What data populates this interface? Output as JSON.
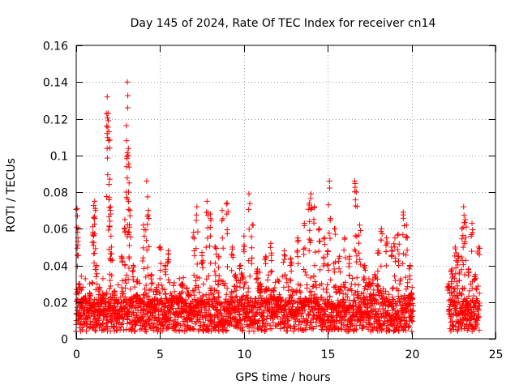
{
  "chart_data": {
    "type": "scatter",
    "title": "Day 145 of 2024, Rate Of TEC Index for receiver cn14",
    "xlabel": "GPS time / hours",
    "ylabel": "ROTI / TECUs",
    "xlim": [
      0,
      25
    ],
    "ylim": [
      0,
      0.16
    ],
    "x_ticks": [
      0,
      5,
      10,
      15,
      20,
      25
    ],
    "x_tick_labels": [
      "0",
      "5",
      "10",
      "15",
      "20",
      "25"
    ],
    "y_ticks": [
      0,
      0.02,
      0.04,
      0.06,
      0.08,
      0.1,
      0.12,
      0.14,
      0.16
    ],
    "y_tick_labels": [
      "0",
      "0.02",
      "0.04",
      "0.06",
      "0.08",
      "0.1",
      "0.12",
      "0.14",
      "0.16"
    ],
    "grid": true,
    "marker": "+",
    "colors": {
      "points": "#ff0000",
      "grid": "#a0a0a0",
      "axes": "#000000"
    },
    "series": [
      {
        "name": "cn14",
        "data_gaps_hours": [
          [
            20.1,
            22.2
          ]
        ],
        "x": [
          0.05,
          0.1,
          0.2,
          0.3,
          0.45,
          0.6,
          0.8,
          1.0,
          1.05,
          1.1,
          1.2,
          1.4,
          1.6,
          1.85,
          1.9,
          1.95,
          2.0,
          2.05,
          2.1,
          2.3,
          2.5,
          2.7,
          2.9,
          3.0,
          3.05,
          3.1,
          3.15,
          3.2,
          3.4,
          3.6,
          3.8,
          4.0,
          4.2,
          4.3,
          4.5,
          4.8,
          5.0,
          5.3,
          5.5,
          5.8,
          6.0,
          6.3,
          6.7,
          7.0,
          7.2,
          7.5,
          7.8,
          8.0,
          8.3,
          8.5,
          8.7,
          9.0,
          9.3,
          9.5,
          9.8,
          10.0,
          10.3,
          10.5,
          10.8,
          11.0,
          11.3,
          11.6,
          12.0,
          12.4,
          12.8,
          13.2,
          13.6,
          13.9,
          14.0,
          14.2,
          14.5,
          14.8,
          15.0,
          15.1,
          15.4,
          15.7,
          16.0,
          16.3,
          16.6,
          16.7,
          16.9,
          17.2,
          17.5,
          17.8,
          18.0,
          18.2,
          18.5,
          18.8,
          19.0,
          19.2,
          19.5,
          19.7,
          19.9,
          20.0,
          22.2,
          22.4,
          22.6,
          22.8,
          23.0,
          23.1,
          23.2,
          23.4,
          23.6,
          23.8,
          24.0
        ],
        "y": [
          0.071,
          0.055,
          0.03,
          0.018,
          0.022,
          0.02,
          0.025,
          0.058,
          0.066,
          0.075,
          0.04,
          0.028,
          0.022,
          0.132,
          0.123,
          0.113,
          0.087,
          0.072,
          0.05,
          0.026,
          0.02,
          0.045,
          0.065,
          0.108,
          0.14,
          0.1,
          0.085,
          0.07,
          0.04,
          0.024,
          0.022,
          0.062,
          0.086,
          0.07,
          0.035,
          0.028,
          0.05,
          0.04,
          0.048,
          0.022,
          0.02,
          0.03,
          0.025,
          0.058,
          0.072,
          0.047,
          0.075,
          0.068,
          0.05,
          0.045,
          0.07,
          0.074,
          0.05,
          0.035,
          0.04,
          0.056,
          0.079,
          0.062,
          0.038,
          0.03,
          0.045,
          0.052,
          0.022,
          0.048,
          0.044,
          0.055,
          0.063,
          0.074,
          0.079,
          0.072,
          0.06,
          0.055,
          0.048,
          0.086,
          0.06,
          0.045,
          0.055,
          0.045,
          0.086,
          0.08,
          0.062,
          0.04,
          0.03,
          0.035,
          0.048,
          0.06,
          0.055,
          0.05,
          0.055,
          0.057,
          0.069,
          0.062,
          0.04,
          0.025,
          0.03,
          0.038,
          0.05,
          0.045,
          0.06,
          0.072,
          0.065,
          0.038,
          0.063,
          0.035,
          0.05
        ]
      }
    ]
  }
}
